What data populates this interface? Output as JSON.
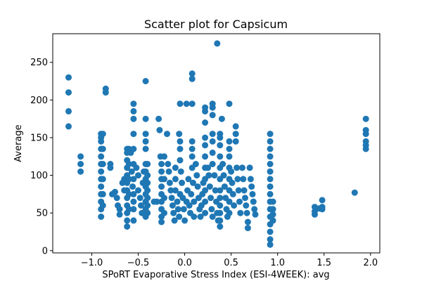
{
  "chart_data": {
    "type": "scatter",
    "title": "Scatter plot for Capsicum",
    "xlabel": "SPoRT Evaporative Stress Index (ESI-4WEEK): avg",
    "ylabel": "Average",
    "xlim": [
      -1.42,
      2.1
    ],
    "ylim": [
      -3,
      288
    ],
    "xticks": [
      -1.0,
      -0.5,
      0.0,
      0.5,
      1.0,
      1.5,
      2.0
    ],
    "xtick_labels": [
      "−1.0",
      "−0.5",
      "0.0",
      "0.5",
      "1.0",
      "1.5",
      "2.0"
    ],
    "yticks": [
      0,
      50,
      100,
      150,
      200,
      250
    ],
    "ytick_labels": [
      "0",
      "50",
      "100",
      "150",
      "200",
      "250"
    ],
    "grid": false,
    "marker_color": "#1f77b4",
    "series": [
      {
        "points": [
          [
            -1.25,
            230
          ],
          [
            -1.25,
            210
          ],
          [
            -1.25,
            185
          ],
          [
            -1.25,
            165
          ],
          [
            -1.12,
            125
          ],
          [
            -1.12,
            115
          ],
          [
            -1.12,
            105
          ],
          [
            -0.9,
            155
          ],
          [
            -0.9,
            150
          ],
          [
            -0.9,
            145
          ],
          [
            -0.9,
            135
          ],
          [
            -0.9,
            125
          ],
          [
            -0.9,
            115
          ],
          [
            -0.9,
            105
          ],
          [
            -0.9,
            95
          ],
          [
            -0.9,
            85
          ],
          [
            -0.9,
            75
          ],
          [
            -0.9,
            65
          ],
          [
            -0.9,
            55
          ],
          [
            -0.9,
            45
          ],
          [
            -0.88,
            155
          ],
          [
            -0.88,
            135
          ],
          [
            -0.88,
            115
          ],
          [
            -0.88,
            95
          ],
          [
            -0.88,
            75
          ],
          [
            -0.88,
            60
          ],
          [
            -0.85,
            215
          ],
          [
            -0.85,
            210
          ],
          [
            -0.8,
            115
          ],
          [
            -0.8,
            110
          ],
          [
            -0.78,
            75
          ],
          [
            -0.75,
            78
          ],
          [
            -0.73,
            70
          ],
          [
            -0.72,
            60
          ],
          [
            -0.7,
            55
          ],
          [
            -0.7,
            48
          ],
          [
            -0.67,
            90
          ],
          [
            -0.65,
            95
          ],
          [
            -0.65,
            80
          ],
          [
            -0.62,
            135
          ],
          [
            -0.62,
            130
          ],
          [
            -0.62,
            120
          ],
          [
            -0.62,
            110
          ],
          [
            -0.62,
            100
          ],
          [
            -0.62,
            90
          ],
          [
            -0.62,
            80
          ],
          [
            -0.62,
            70
          ],
          [
            -0.62,
            60
          ],
          [
            -0.62,
            50
          ],
          [
            -0.62,
            40
          ],
          [
            -0.62,
            32
          ],
          [
            -0.6,
            135
          ],
          [
            -0.6,
            115
          ],
          [
            -0.6,
            95
          ],
          [
            -0.6,
            75
          ],
          [
            -0.6,
            55
          ],
          [
            -0.58,
            130
          ],
          [
            -0.57,
            105
          ],
          [
            -0.56,
            85
          ],
          [
            -0.55,
            65
          ],
          [
            -0.55,
            195
          ],
          [
            -0.55,
            185
          ],
          [
            -0.55,
            175
          ],
          [
            -0.55,
            155
          ],
          [
            -0.55,
            135
          ],
          [
            -0.55,
            115
          ],
          [
            -0.55,
            95
          ],
          [
            -0.55,
            75
          ],
          [
            -0.55,
            55
          ],
          [
            -0.55,
            40
          ],
          [
            -0.52,
            110
          ],
          [
            -0.5,
            100
          ],
          [
            -0.5,
            80
          ],
          [
            -0.48,
            70
          ],
          [
            -0.47,
            60
          ],
          [
            -0.46,
            50
          ],
          [
            -0.45,
            90
          ],
          [
            -0.44,
            105
          ],
          [
            -0.42,
            225
          ],
          [
            -0.42,
            175
          ],
          [
            -0.42,
            155
          ],
          [
            -0.42,
            145
          ],
          [
            -0.42,
            135
          ],
          [
            -0.42,
            115
          ],
          [
            -0.42,
            105
          ],
          [
            -0.42,
            95
          ],
          [
            -0.42,
            85
          ],
          [
            -0.42,
            75
          ],
          [
            -0.42,
            65
          ],
          [
            -0.42,
            55
          ],
          [
            -0.42,
            45
          ],
          [
            -0.4,
            115
          ],
          [
            -0.4,
            100
          ],
          [
            -0.4,
            90
          ],
          [
            -0.4,
            80
          ],
          [
            -0.4,
            70
          ],
          [
            -0.4,
            60
          ],
          [
            -0.4,
            50
          ],
          [
            -0.33,
            65
          ],
          [
            -0.3,
            65
          ],
          [
            -0.28,
            175
          ],
          [
            -0.27,
            160
          ],
          [
            -0.26,
            125
          ],
          [
            -0.25,
            115
          ],
          [
            -0.25,
            105
          ],
          [
            -0.25,
            95
          ],
          [
            -0.25,
            85
          ],
          [
            -0.25,
            75
          ],
          [
            -0.25,
            65
          ],
          [
            -0.25,
            55
          ],
          [
            -0.25,
            45
          ],
          [
            -0.25,
            38
          ],
          [
            -0.22,
            125
          ],
          [
            -0.22,
            95
          ],
          [
            -0.22,
            70
          ],
          [
            -0.22,
            50
          ],
          [
            -0.19,
            155
          ],
          [
            -0.18,
            115
          ],
          [
            -0.17,
            105
          ],
          [
            -0.16,
            90
          ],
          [
            -0.15,
            80
          ],
          [
            -0.14,
            70
          ],
          [
            -0.13,
            60
          ],
          [
            -0.12,
            50
          ],
          [
            -0.11,
            40
          ],
          [
            -0.1,
            110
          ],
          [
            -0.1,
            95
          ],
          [
            -0.1,
            80
          ],
          [
            -0.08,
            65
          ],
          [
            -0.07,
            55
          ],
          [
            -0.06,
            45
          ],
          [
            -0.05,
            75
          ],
          [
            -0.06,
            155
          ],
          [
            -0.05,
            145
          ],
          [
            -0.05,
            135
          ],
          [
            -0.05,
            120
          ],
          [
            -0.04,
            105
          ],
          [
            -0.03,
            90
          ],
          [
            -0.02,
            70
          ],
          [
            -0.01,
            55
          ],
          [
            0.0,
            40
          ],
          [
            -0.05,
            195
          ],
          [
            0.02,
            195
          ],
          [
            0.02,
            65
          ],
          [
            0.03,
            80
          ],
          [
            0.04,
            95
          ],
          [
            0.05,
            60
          ],
          [
            0.06,
            50
          ],
          [
            0.07,
            75
          ],
          [
            0.08,
            110
          ],
          [
            0.09,
            90
          ],
          [
            0.1,
            65
          ],
          [
            0.1,
            45
          ],
          [
            0.08,
            235
          ],
          [
            0.08,
            228
          ],
          [
            0.08,
            195
          ],
          [
            0.08,
            145
          ],
          [
            0.08,
            135
          ],
          [
            0.08,
            125
          ],
          [
            0.12,
            115
          ],
          [
            0.13,
            100
          ],
          [
            0.14,
            85
          ],
          [
            0.15,
            70
          ],
          [
            0.16,
            55
          ],
          [
            0.17,
            45
          ],
          [
            0.18,
            60
          ],
          [
            0.19,
            75
          ],
          [
            0.2,
            90
          ],
          [
            0.22,
            190
          ],
          [
            0.22,
            185
          ],
          [
            0.22,
            170
          ],
          [
            0.22,
            150
          ],
          [
            0.22,
            140
          ],
          [
            0.22,
            125
          ],
          [
            0.22,
            110
          ],
          [
            0.22,
            95
          ],
          [
            0.22,
            80
          ],
          [
            0.22,
            65
          ],
          [
            0.22,
            50
          ],
          [
            0.25,
            110
          ],
          [
            0.26,
            100
          ],
          [
            0.27,
            85
          ],
          [
            0.28,
            70
          ],
          [
            0.29,
            55
          ],
          [
            0.3,
            45
          ],
          [
            0.3,
            195
          ],
          [
            0.3,
            190
          ],
          [
            0.3,
            180
          ],
          [
            0.3,
            155
          ],
          [
            0.3,
            145
          ],
          [
            0.3,
            130
          ],
          [
            0.3,
            115
          ],
          [
            0.32,
            100
          ],
          [
            0.33,
            80
          ],
          [
            0.34,
            65
          ],
          [
            0.35,
            50
          ],
          [
            0.35,
            275
          ],
          [
            0.36,
            40
          ],
          [
            0.38,
            155
          ],
          [
            0.38,
            150
          ],
          [
            0.38,
            140
          ],
          [
            0.38,
            125
          ],
          [
            0.38,
            110
          ],
          [
            0.38,
            95
          ],
          [
            0.38,
            80
          ],
          [
            0.38,
            70
          ],
          [
            0.38,
            60
          ],
          [
            0.38,
            50
          ],
          [
            0.38,
            40
          ],
          [
            0.38,
            32
          ],
          [
            0.4,
            175
          ],
          [
            0.41,
            115
          ],
          [
            0.42,
            100
          ],
          [
            0.43,
            85
          ],
          [
            0.44,
            70
          ],
          [
            0.45,
            55
          ],
          [
            0.46,
            45
          ],
          [
            0.48,
            195
          ],
          [
            0.48,
            145
          ],
          [
            0.48,
            135
          ],
          [
            0.48,
            125
          ],
          [
            0.48,
            110
          ],
          [
            0.48,
            95
          ],
          [
            0.48,
            80
          ],
          [
            0.48,
            65
          ],
          [
            0.48,
            50
          ],
          [
            0.5,
            105
          ],
          [
            0.51,
            90
          ],
          [
            0.52,
            75
          ],
          [
            0.53,
            60
          ],
          [
            0.55,
            165
          ],
          [
            0.55,
            155
          ],
          [
            0.55,
            145
          ],
          [
            0.56,
            110
          ],
          [
            0.57,
            95
          ],
          [
            0.58,
            80
          ],
          [
            0.59,
            65
          ],
          [
            0.6,
            50
          ],
          [
            0.62,
            110
          ],
          [
            0.63,
            95
          ],
          [
            0.64,
            80
          ],
          [
            0.65,
            70
          ],
          [
            0.66,
            60
          ],
          [
            0.67,
            50
          ],
          [
            0.68,
            38
          ],
          [
            0.68,
            30
          ],
          [
            0.7,
            110
          ],
          [
            0.71,
            95
          ],
          [
            0.72,
            85
          ],
          [
            0.73,
            75
          ],
          [
            0.74,
            65
          ],
          [
            0.75,
            55
          ],
          [
            0.76,
            48
          ],
          [
            0.92,
            155
          ],
          [
            0.92,
            145
          ],
          [
            0.92,
            135
          ],
          [
            0.92,
            125
          ],
          [
            0.92,
            115
          ],
          [
            0.92,
            105
          ],
          [
            0.92,
            95
          ],
          [
            0.92,
            85
          ],
          [
            0.92,
            75
          ],
          [
            0.92,
            65
          ],
          [
            0.92,
            55
          ],
          [
            0.92,
            45
          ],
          [
            0.92,
            35
          ],
          [
            0.92,
            25
          ],
          [
            0.92,
            15
          ],
          [
            0.92,
            8
          ],
          [
            0.95,
            65
          ],
          [
            0.95,
            55
          ],
          [
            0.95,
            48
          ],
          [
            0.95,
            40
          ],
          [
            1.4,
            58
          ],
          [
            1.4,
            52
          ],
          [
            1.4,
            48
          ],
          [
            1.45,
            56
          ],
          [
            1.48,
            58
          ],
          [
            1.48,
            67
          ],
          [
            1.48,
            55
          ],
          [
            1.83,
            77
          ],
          [
            1.95,
            175
          ],
          [
            1.95,
            160
          ],
          [
            1.95,
            155
          ],
          [
            1.95,
            145
          ],
          [
            1.95,
            140
          ],
          [
            1.95,
            135
          ]
        ]
      }
    ]
  }
}
